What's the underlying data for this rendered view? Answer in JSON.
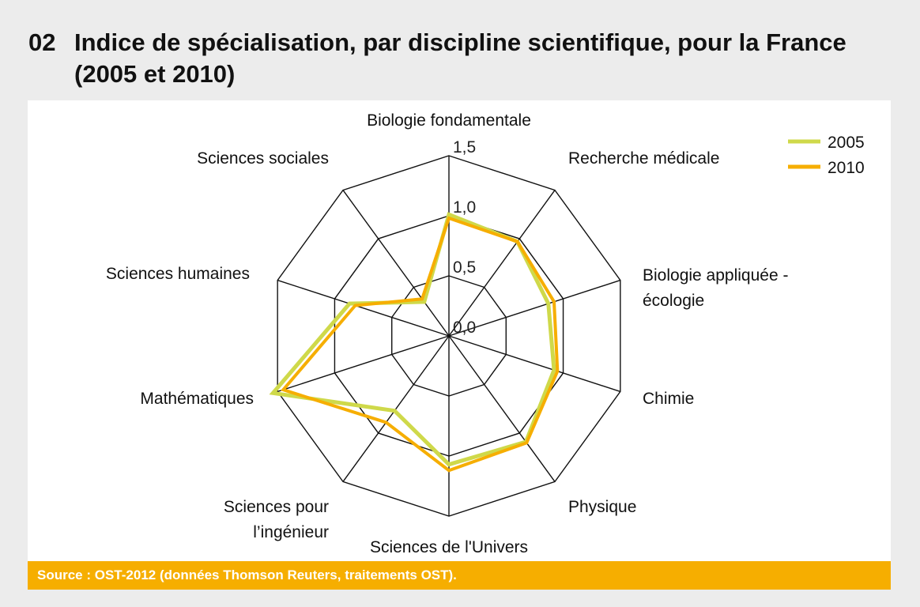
{
  "header": {
    "number": "02",
    "title_line1": "Indice de spécialisation, par discipline scientifique, pour la France",
    "title_line2": "(2005 et 2010)"
  },
  "source": "Source : OST-2012 (données Thomson Reuters, traitements OST).",
  "colors": {
    "series_2005": "#cfd94a",
    "series_2010": "#f6ae00",
    "grid": "#111111",
    "source_bar": "#f6ae00"
  },
  "chart_data": {
    "type": "radar",
    "title": "Indice de spécialisation, par discipline scientifique, pour la France (2005 et 2010)",
    "categories": [
      "Biologie fondamentale",
      "Recherche médicale",
      "Biologie appliquée - écologie",
      "Chimie",
      "Physique",
      "Sciences de l'Univers",
      "Sciences pour l’ingénieur",
      "Mathématiques",
      "Sciences humaines",
      "Sciences sociales"
    ],
    "radial_range": [
      0,
      1.5
    ],
    "ticks": [
      "0,0",
      "0,5",
      "1,0",
      "1,5"
    ],
    "tick_values": [
      0,
      0.5,
      1.0,
      1.5
    ],
    "grid": true,
    "legend_position": "top-right",
    "series": [
      {
        "name": "2005",
        "values": [
          1.01,
          0.97,
          0.87,
          0.92,
          1.09,
          1.07,
          0.77,
          1.54,
          0.87,
          0.35
        ]
      },
      {
        "name": "2010",
        "values": [
          0.98,
          0.97,
          0.92,
          0.95,
          1.1,
          1.12,
          0.89,
          1.45,
          0.82,
          0.38
        ]
      }
    ]
  }
}
